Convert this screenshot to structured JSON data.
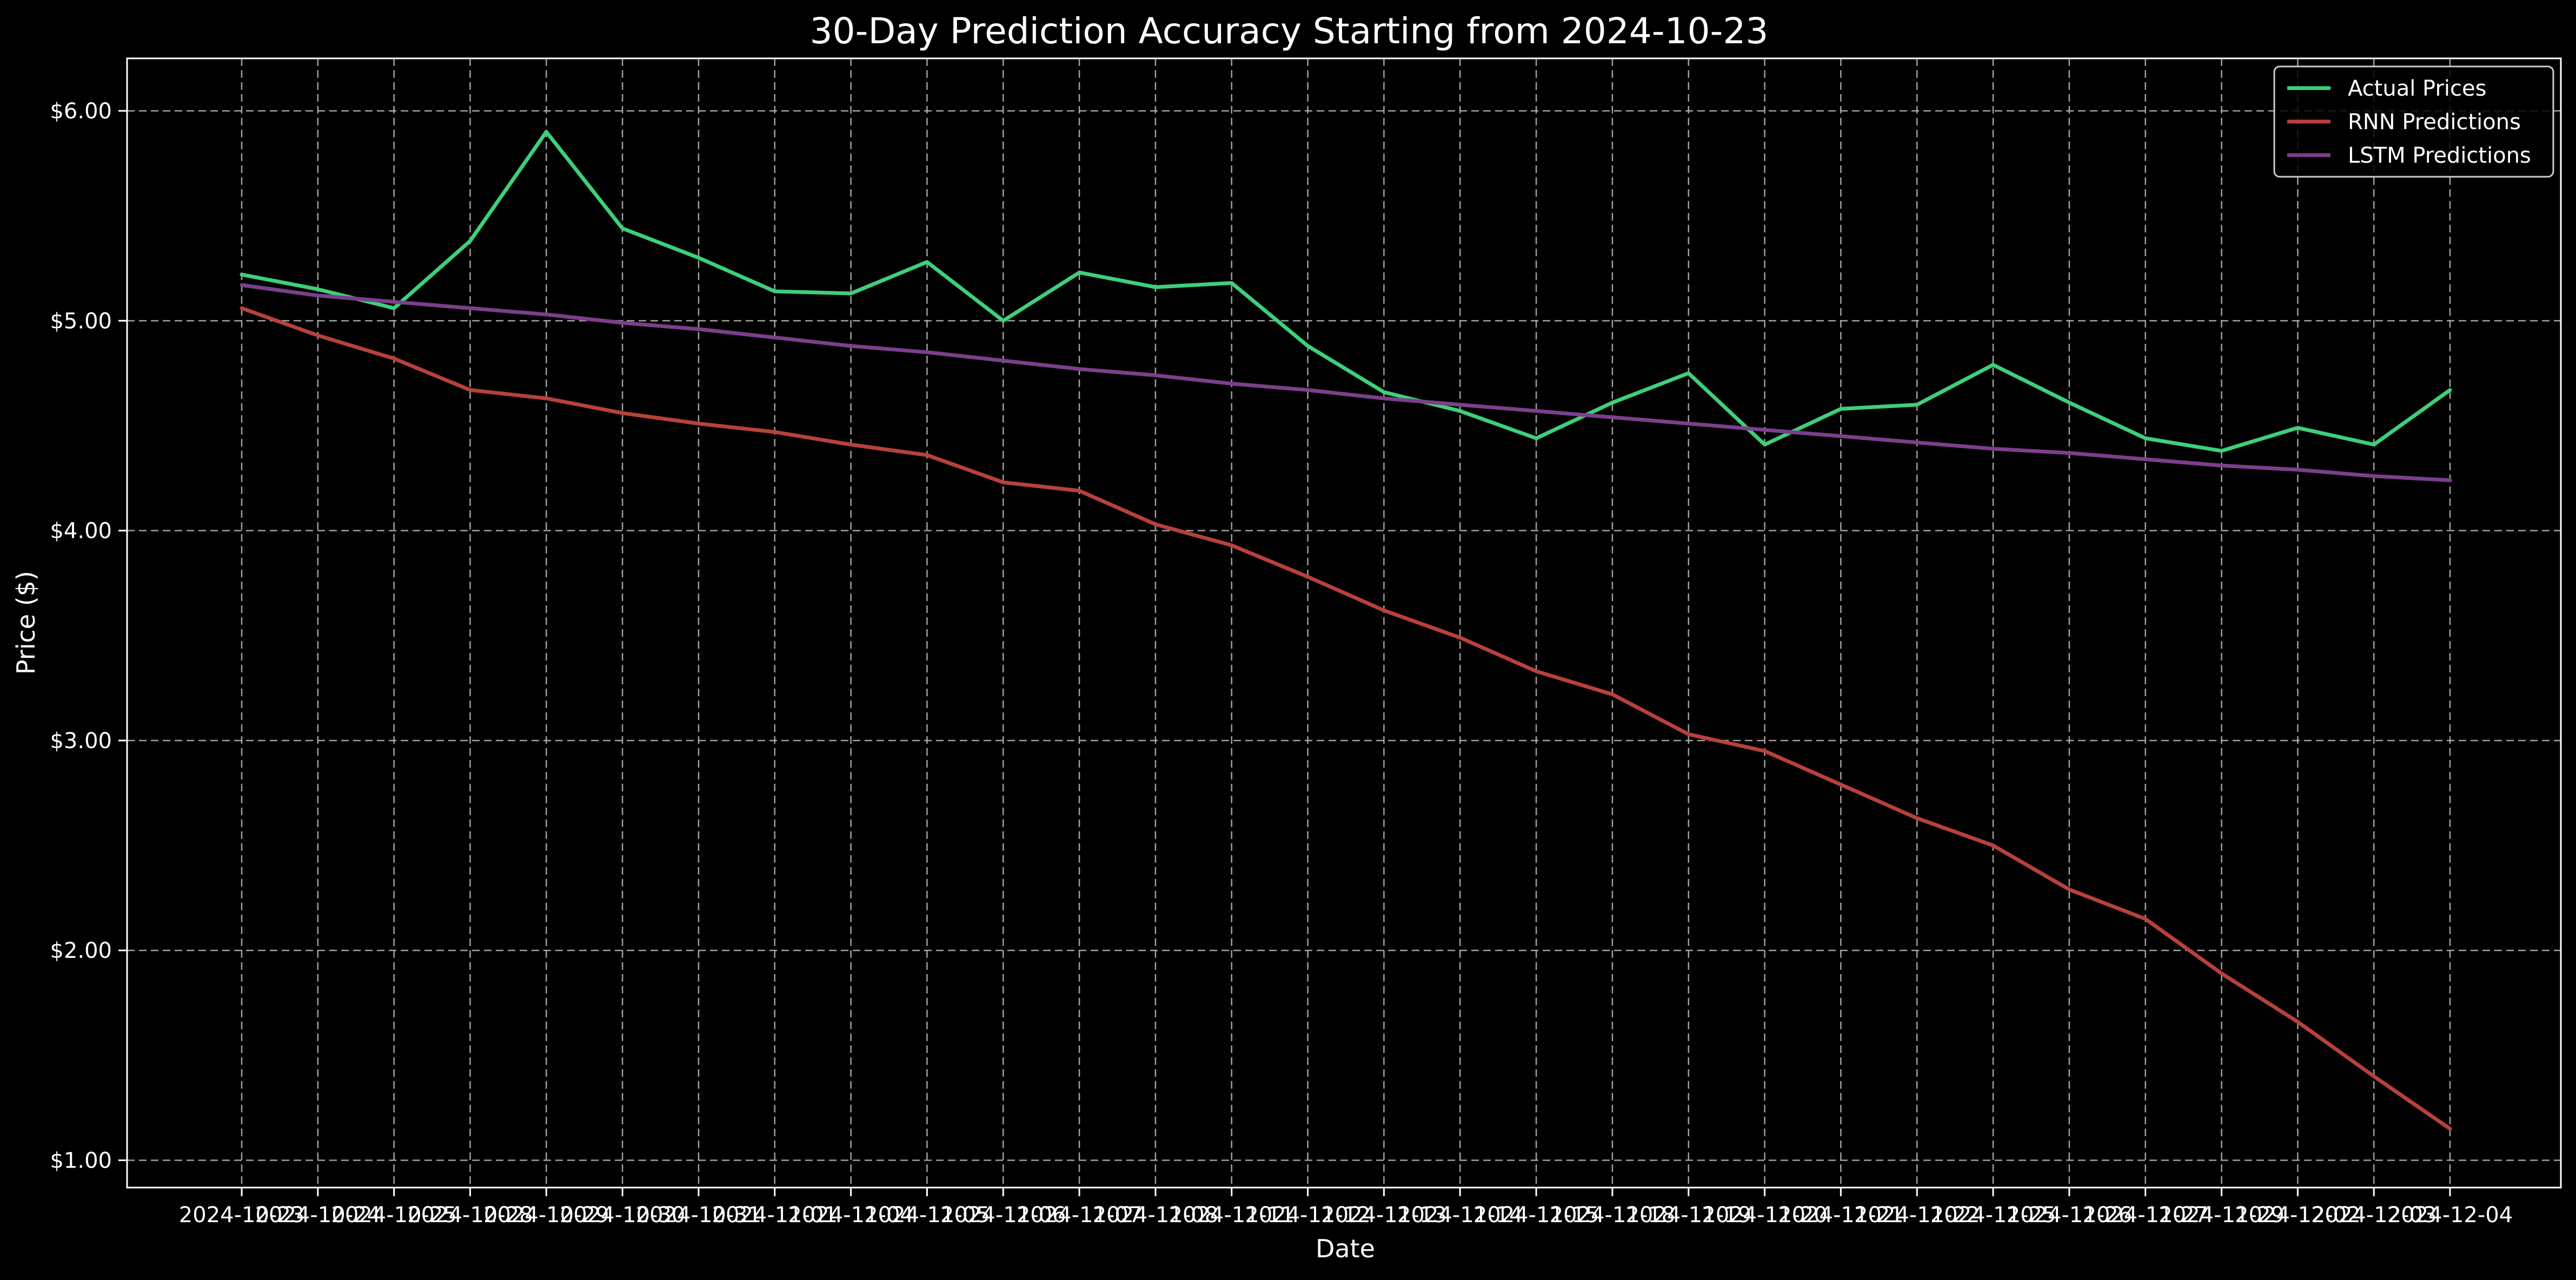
{
  "chart_data": {
    "type": "line",
    "title": "30-Day Prediction Accuracy Starting from 2024-10-23",
    "xlabel": "Date",
    "ylabel": "Price ($)",
    "ylim": [
      0.87,
      6.25
    ],
    "y_ticks": [
      1,
      2,
      3,
      4,
      5,
      6
    ],
    "y_tick_labels": [
      "$1.00",
      "$2.00",
      "$3.00",
      "$4.00",
      "$5.00",
      "$6.00"
    ],
    "grid": true,
    "legend_position": "top-right",
    "categories": [
      "2024-10-23",
      "2024-10-24",
      "2024-10-25",
      "2024-10-28",
      "2024-10-29",
      "2024-10-30",
      "2024-10-31",
      "2024-11-01",
      "2024-11-04",
      "2024-11-05",
      "2024-11-06",
      "2024-11-07",
      "2024-11-08",
      "2024-11-11",
      "2024-11-12",
      "2024-11-13",
      "2024-11-14",
      "2024-11-15",
      "2024-11-18",
      "2024-11-19",
      "2024-11-20",
      "2024-11-21",
      "2024-11-22",
      "2024-11-25",
      "2024-11-26",
      "2024-11-27",
      "2024-11-29",
      "2024-12-02",
      "2024-12-03",
      "2024-12-04"
    ],
    "series": [
      {
        "name": "Actual Prices",
        "color": "#3ecf7a",
        "values": [
          5.22,
          5.15,
          5.06,
          5.38,
          5.9,
          5.44,
          5.3,
          5.14,
          5.13,
          5.28,
          5.0,
          5.23,
          5.16,
          5.18,
          4.88,
          4.66,
          4.57,
          4.44,
          4.61,
          4.75,
          4.41,
          4.58,
          4.6,
          4.79,
          4.61,
          4.44,
          4.38,
          4.49,
          4.41,
          4.67
        ]
      },
      {
        "name": "RNN Predictions",
        "color": "#b8413c",
        "values": [
          5.06,
          4.93,
          4.82,
          4.67,
          4.63,
          4.56,
          4.51,
          4.47,
          4.41,
          4.36,
          4.23,
          4.19,
          4.03,
          3.93,
          3.78,
          3.62,
          3.49,
          3.33,
          3.22,
          3.03,
          2.95,
          2.79,
          2.63,
          2.5,
          2.29,
          2.15,
          1.89,
          1.66,
          1.4,
          1.15
        ]
      },
      {
        "name": "LSTM Predictions",
        "color": "#7b3f8c",
        "values": [
          5.17,
          5.12,
          5.09,
          5.06,
          5.03,
          4.99,
          4.96,
          4.92,
          4.88,
          4.85,
          4.81,
          4.77,
          4.74,
          4.7,
          4.67,
          4.63,
          4.6,
          4.57,
          4.54,
          4.51,
          4.48,
          4.45,
          4.42,
          4.39,
          4.37,
          4.34,
          4.31,
          4.29,
          4.26,
          4.24
        ]
      }
    ]
  }
}
